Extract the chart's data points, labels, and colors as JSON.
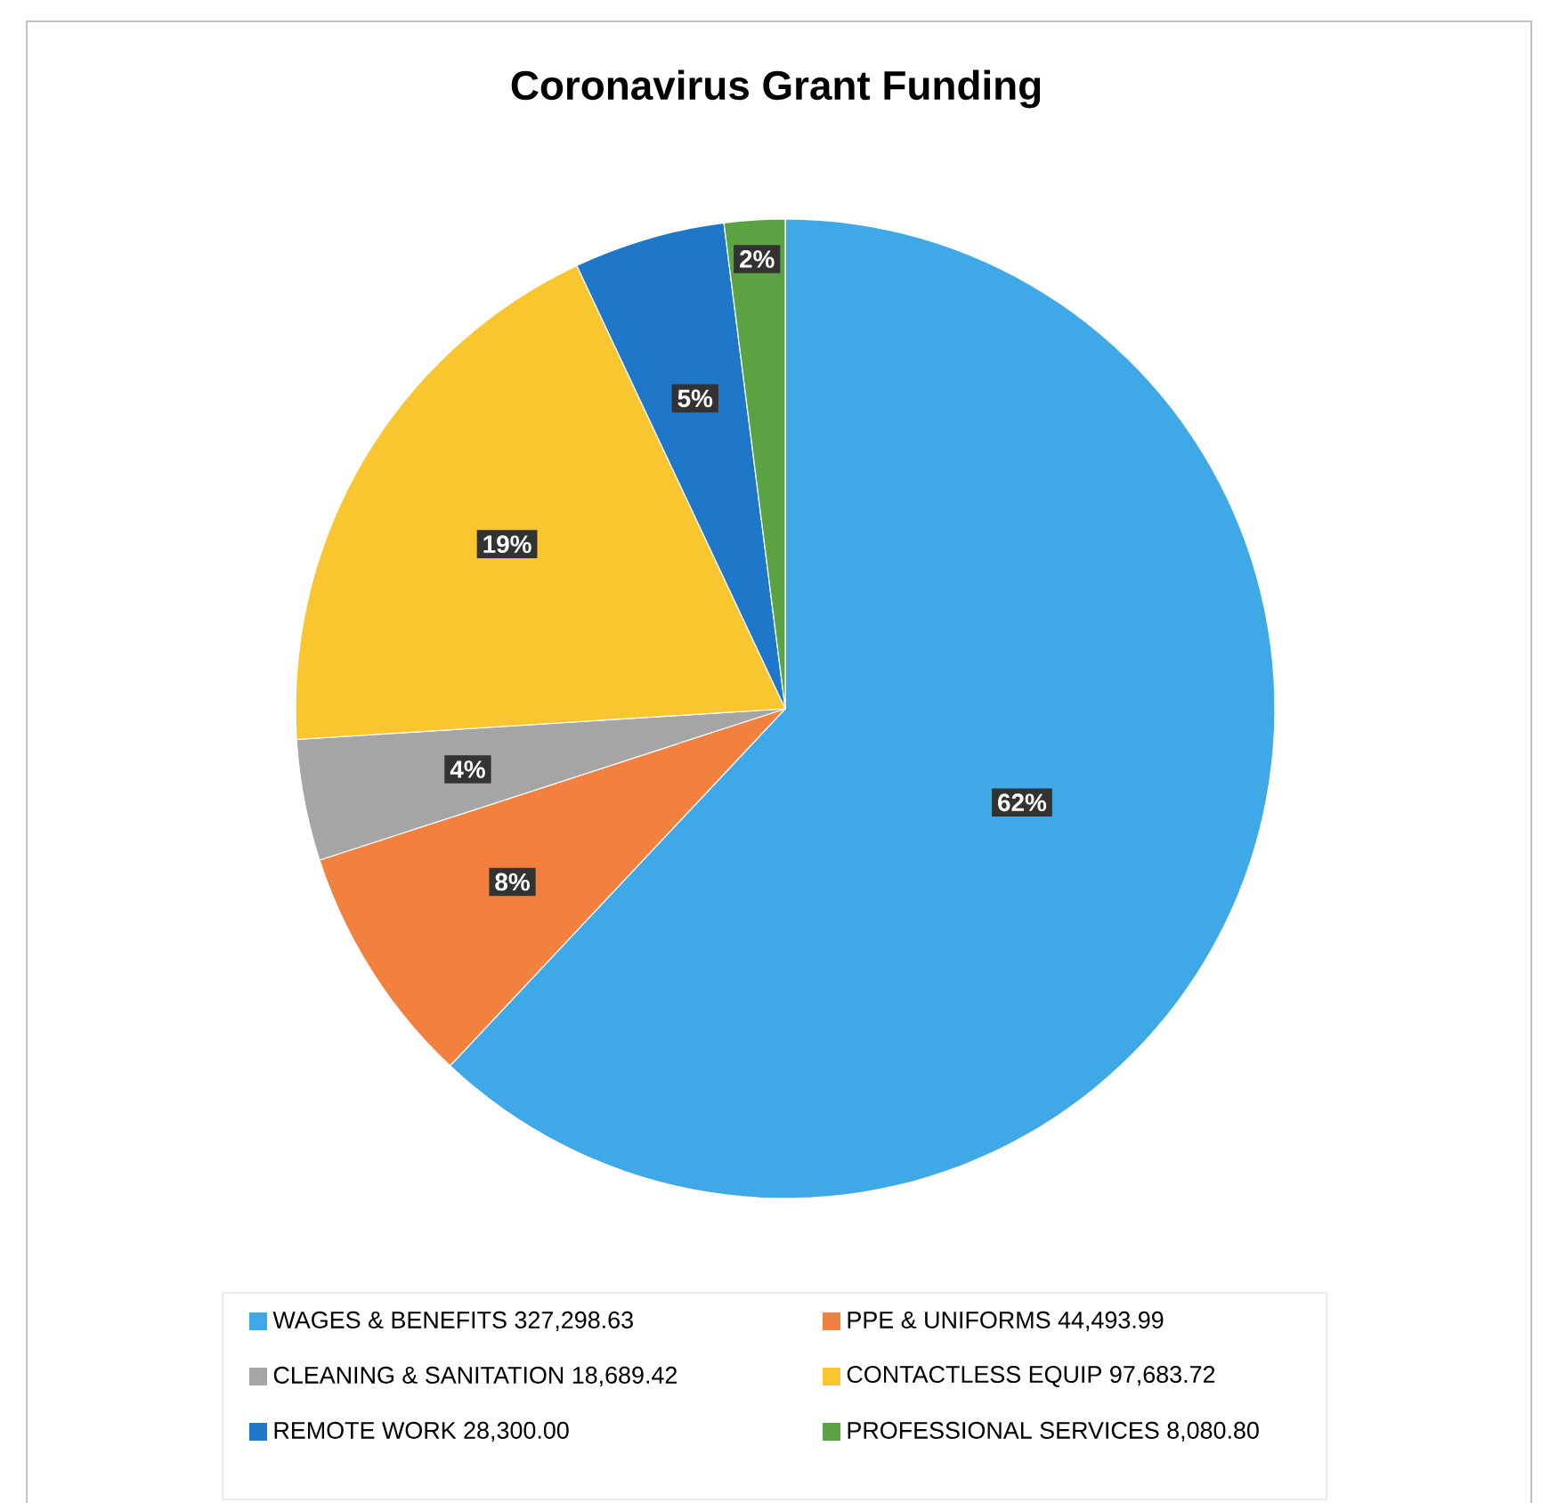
{
  "chart_data": {
    "type": "pie",
    "title": "Coronavirus Grant Funding",
    "categories": [
      "WAGES & BENEFITS  327,298.63",
      "PPE & UNIFORMS  44,493.99",
      "CLEANING & SANITATION  18,689.42",
      "CONTACTLESS EQUIP  97,683.72",
      "REMOTE WORK  28,300.00",
      "PROFESSIONAL SERVICES  8,080.80"
    ],
    "values": [
      62,
      8,
      4,
      19,
      5,
      2
    ],
    "colors": [
      "#3fa9e8",
      "#f2803e",
      "#a5a5a5",
      "#f9c62f",
      "#1f77c9",
      "#5ba243"
    ],
    "value_labels": [
      "62%",
      "8%",
      "4%",
      "19%",
      "5%",
      "2%"
    ],
    "legend": "bottom"
  }
}
